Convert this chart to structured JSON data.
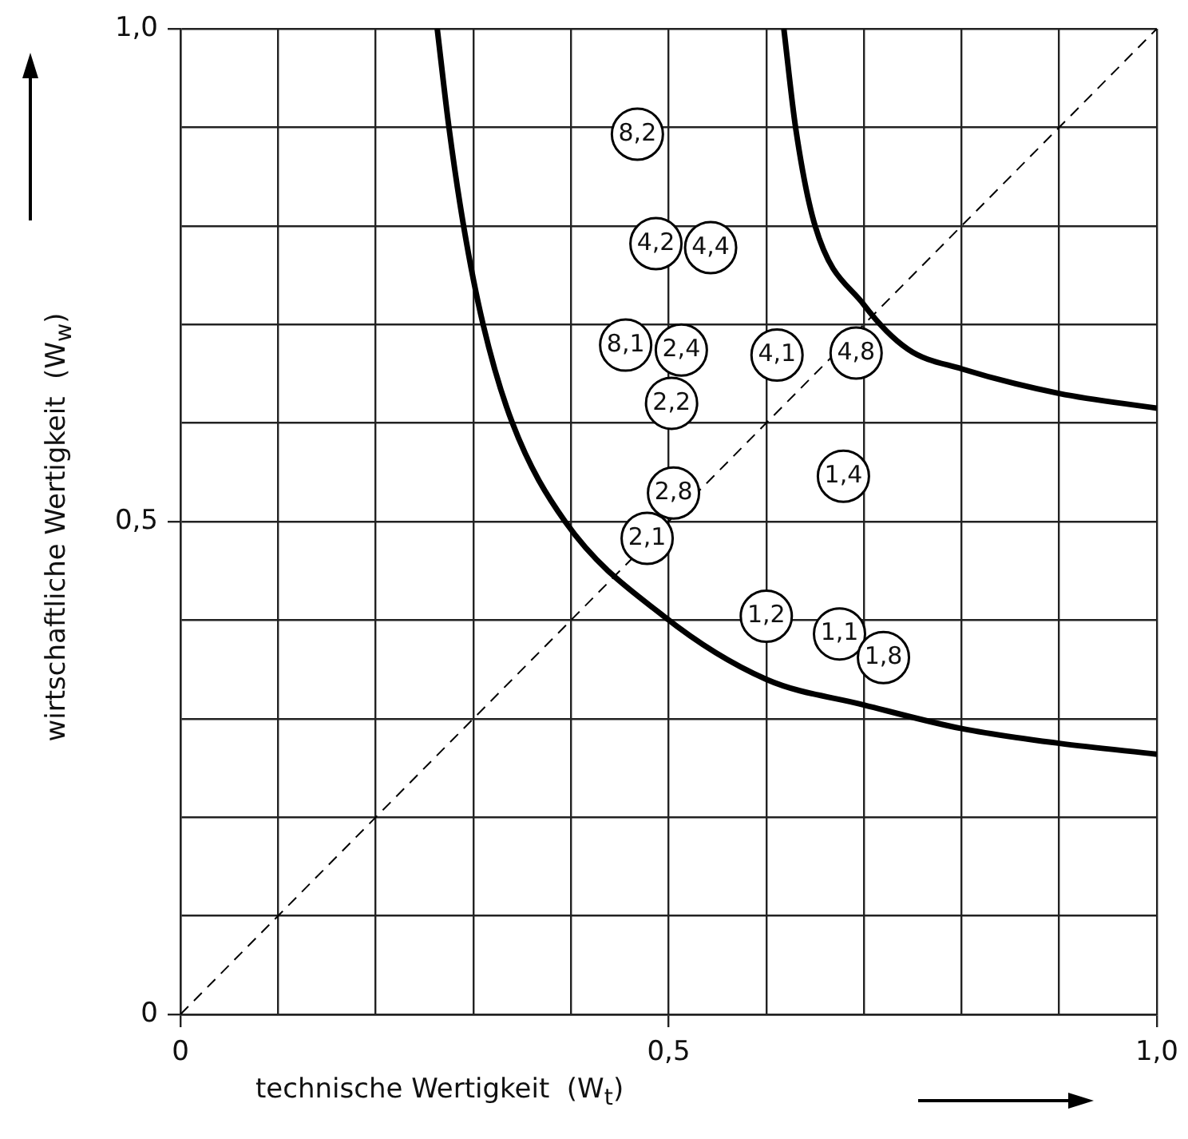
{
  "chart_data": {
    "type": "scatter",
    "xlabel": "technische Wertigkeit  (W$_{t}$)",
    "ylabel": "wirtschaftliche Wertigkeit  (W$_{w}$)",
    "xlim": [
      0,
      1
    ],
    "ylim": [
      0,
      1
    ],
    "xticks": [
      0,
      {
        "value": 0.1,
        "label": null
      },
      {
        "value": 0.2,
        "label": null
      },
      {
        "value": 0.3,
        "label": null
      },
      {
        "value": 0.4,
        "label": null
      },
      {
        "value": 0.5,
        "label": "0,5"
      },
      {
        "value": 0.6,
        "label": null
      },
      {
        "value": 0.7,
        "label": null
      },
      {
        "value": 0.8,
        "label": null
      },
      {
        "value": 0.9,
        "label": null
      },
      {
        "value": 1,
        "label": "1,0"
      }
    ],
    "yticks": [
      0,
      {
        "value": 0.1,
        "label": null
      },
      {
        "value": 0.2,
        "label": null
      },
      {
        "value": 0.3,
        "label": null
      },
      {
        "value": 0.4,
        "label": null
      },
      {
        "value": 0.5,
        "label": "0,5"
      },
      {
        "value": 0.6,
        "label": null
      },
      {
        "value": 0.7,
        "label": null
      },
      {
        "value": 0.8,
        "label": null
      },
      {
        "value": 0.9,
        "label": null
      },
      {
        "value": 1,
        "label": "1,0"
      }
    ],
    "grid": true,
    "legend": false,
    "annotations": [
      {
        "text": "8,2",
        "x": 0.468,
        "y": 0.893
      },
      {
        "text": "4,2",
        "x": 0.487,
        "y": 0.782
      },
      {
        "text": "4,4",
        "x": 0.543,
        "y": 0.778
      },
      {
        "text": "8,1",
        "x": 0.456,
        "y": 0.679
      },
      {
        "text": "2,4",
        "x": 0.513,
        "y": 0.674
      },
      {
        "text": "4,1",
        "x": 0.611,
        "y": 0.669
      },
      {
        "text": "4,8",
        "x": 0.692,
        "y": 0.671
      },
      {
        "text": "2,2",
        "x": 0.503,
        "y": 0.62
      },
      {
        "text": "1,4",
        "x": 0.679,
        "y": 0.546
      },
      {
        "text": "2,8",
        "x": 0.505,
        "y": 0.529
      },
      {
        "text": "2,1",
        "x": 0.478,
        "y": 0.483
      },
      {
        "text": "1,2",
        "x": 0.6,
        "y": 0.404
      },
      {
        "text": "1,1",
        "x": 0.675,
        "y": 0.386
      },
      {
        "text": "1,8",
        "x": 0.72,
        "y": 0.362
      }
    ],
    "series": [
      {
        "marker": "circle",
        "color": "#000000",
        "x": [
          0.468,
          0.487,
          0.543,
          0.456,
          0.513,
          0.611,
          0.692,
          0.503,
          0.679,
          0.505,
          0.478,
          0.6,
          0.675,
          0.72
        ],
        "values": [
          0.893,
          0.782,
          0.778,
          0.679,
          0.674,
          0.669,
          0.671,
          0.62,
          0.546,
          0.529,
          0.483,
          0.404,
          0.386,
          0.362
        ]
      },
      {
        "type": "line",
        "line_style": "solid",
        "color": "#000000",
        "x": [
          0.263,
          0.275,
          0.29,
          0.31,
          0.34,
          0.394,
          0.495,
          0.6,
          0.7,
          0.8,
          0.9,
          1.0
        ],
        "values": [
          1.0,
          0.9,
          0.8,
          0.7,
          0.6,
          0.5,
          0.404,
          0.34,
          0.314,
          0.29,
          0.275,
          0.264
        ]
      },
      {
        "type": "line",
        "line_style": "solid",
        "color": "#000000",
        "x": [
          0.618,
          0.63,
          0.65,
          0.7,
          0.745,
          0.8,
          0.9,
          1.0
        ],
        "values": [
          1.0,
          0.9,
          0.8,
          0.72,
          0.675,
          0.655,
          0.63,
          0.615
        ]
      },
      {
        "type": "line",
        "line_style": "dashed",
        "color": "#000000",
        "x": [
          0,
          1
        ],
        "values": [
          0,
          1
        ]
      }
    ]
  }
}
